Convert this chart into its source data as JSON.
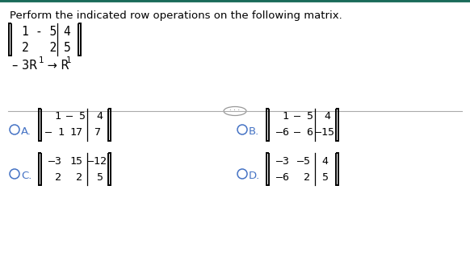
{
  "title": "Perform the indicated row operations on the following matrix.",
  "title_color": "#000000",
  "bg_color": "#ffffff",
  "border_color": "#1a6b5a",
  "question_matrix": {
    "rows": [
      [
        "1",
        "- 5",
        "4"
      ],
      [
        "2",
        "  2",
        "5"
      ]
    ],
    "divider_col": 2
  },
  "row_op_parts": [
    {
      "text": "– 3R",
      "sub": "1",
      "normal": " → R",
      "sub2": "1"
    }
  ],
  "separator_color": "#aaaaaa",
  "options": [
    {
      "label": "A.",
      "rows": [
        [
          " 1",
          "– 5",
          " 4"
        ],
        [
          "– 1",
          "17",
          "7"
        ]
      ],
      "divider_col": 2
    },
    {
      "label": "B.",
      "rows": [
        [
          " 1",
          "– 5",
          " 4"
        ],
        [
          "–6",
          "– 6",
          "–15"
        ]
      ],
      "divider_col": 2
    },
    {
      "label": "C.",
      "rows": [
        [
          "–3",
          "15",
          "–12"
        ],
        [
          " 2",
          " 2",
          " 5"
        ]
      ],
      "divider_col": 2
    },
    {
      "label": "D.",
      "rows": [
        [
          "–3",
          "–5",
          "4"
        ],
        [
          "–6",
          " 2",
          "5"
        ]
      ],
      "divider_col": 2
    }
  ],
  "option_label_color": "#4472c4",
  "matrix_text_color": "#000000",
  "bracket_color": "#000000",
  "font_size_title": 9.5,
  "font_size_matrix": 9.5,
  "font_size_option_label": 9.5
}
